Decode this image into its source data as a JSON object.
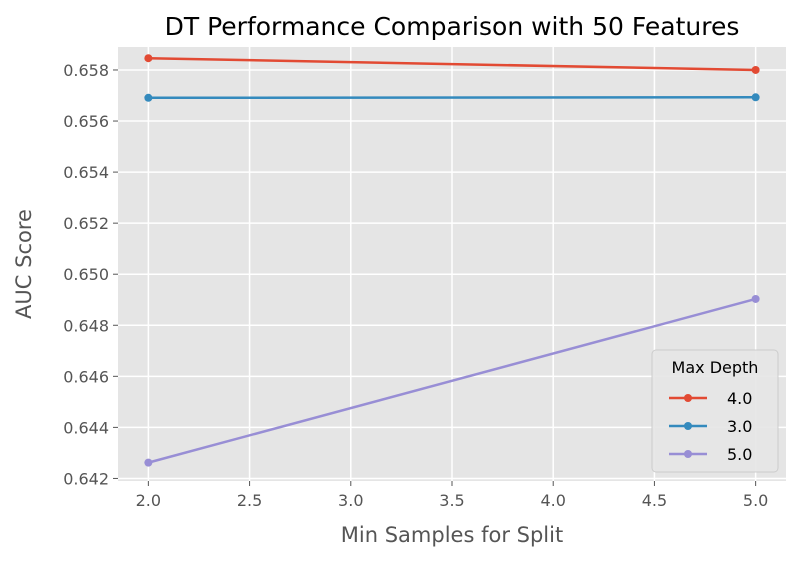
{
  "chart_data": {
    "type": "line",
    "title": "DT Performance Comparison with 50 Features",
    "xlabel": "Min Samples for Split",
    "ylabel": "AUC Score",
    "xlim": [
      1.85,
      5.15
    ],
    "ylim": [
      0.6419,
      0.6589
    ],
    "x_ticks": [
      "2.0",
      "2.5",
      "3.0",
      "3.5",
      "4.0",
      "4.5",
      "5.0"
    ],
    "y_ticks": [
      "0.642",
      "0.644",
      "0.646",
      "0.648",
      "0.650",
      "0.652",
      "0.654",
      "0.656",
      "0.658"
    ],
    "grid": true,
    "legend": {
      "title": "Max Depth",
      "placement": "lower-right"
    },
    "series": [
      {
        "name": "4.0",
        "color": "#E24A33",
        "x": [
          2,
          5
        ],
        "y": [
          0.65846,
          0.658
        ]
      },
      {
        "name": "3.0",
        "color": "#348ABD",
        "x": [
          2,
          5
        ],
        "y": [
          0.65691,
          0.65693
        ]
      },
      {
        "name": "5.0",
        "color": "#988ED5",
        "x": [
          2,
          5
        ],
        "y": [
          0.64262,
          0.64903
        ]
      }
    ]
  }
}
